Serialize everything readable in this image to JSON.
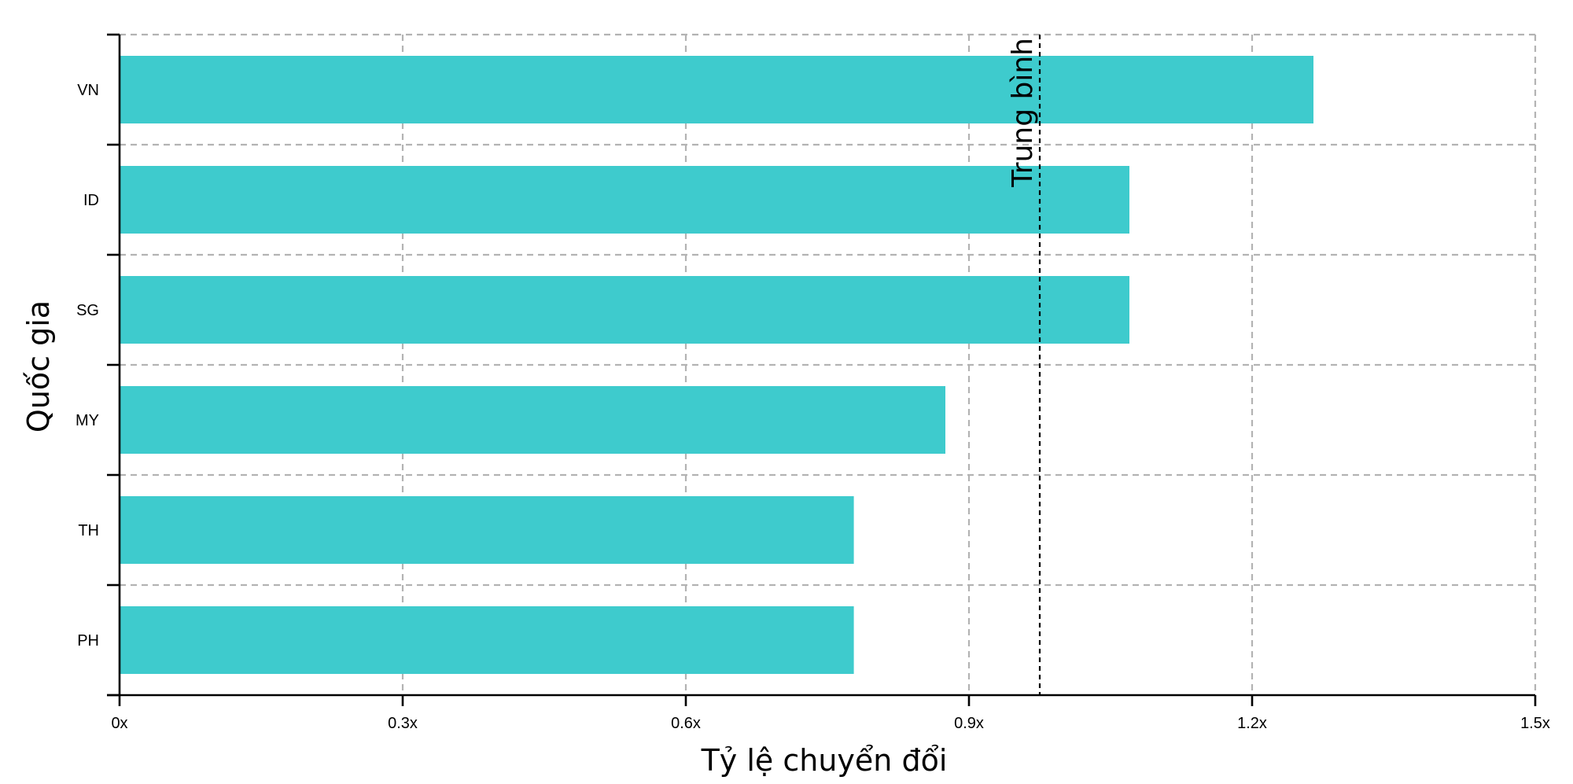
{
  "chart_data": {
    "type": "bar",
    "orientation": "horizontal",
    "categories": [
      "VN",
      "ID",
      "SG",
      "MY",
      "TH",
      "PH"
    ],
    "values": [
      1.265,
      1.07,
      1.07,
      0.875,
      0.778,
      0.778
    ],
    "xlabel": "Tỷ lệ chuyển đổi",
    "ylabel": "Quốc gia",
    "xlim": [
      0,
      1.5
    ],
    "xticks": [
      0,
      0.3,
      0.6,
      0.9,
      1.2,
      1.5
    ],
    "xtick_labels": [
      "0x",
      "0.3x",
      "0.6x",
      "0.9x",
      "1.2x",
      "1.5x"
    ],
    "reference_line": {
      "value": 0.975,
      "label": "Trung bình"
    },
    "grid": true,
    "bar_color": "#3ecbcd"
  }
}
